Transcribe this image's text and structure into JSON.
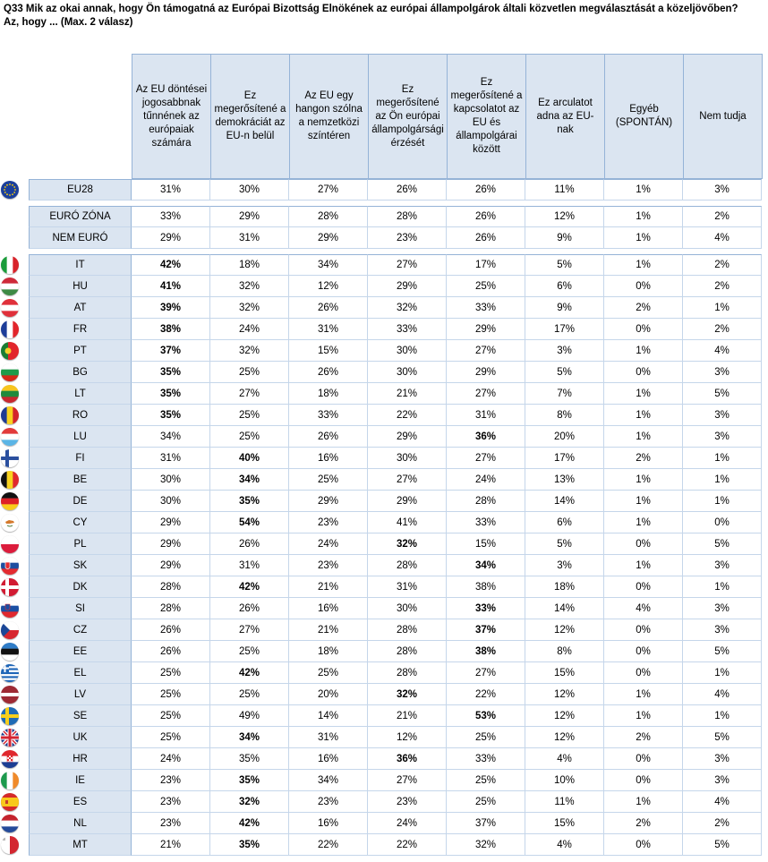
{
  "question": {
    "line1": "Q33 Mik az okai annak, hogy Ön támogatná az Európai Bizottság Elnökének az európai állampolgárok általi közvetlen megválasztását a közeljövőben?",
    "line2": "Az, hogy ... (Max. 2 válasz)"
  },
  "columns": [
    "Az EU döntései jogosabbnak tűnnének az európaiak számára",
    "Ez megerősítené a demokráciát az EU-n belül",
    "Az EU egy hangon szólna a nemzetközi színtéren",
    "Ez megerősítené az Ön európai állampolgársági érzését",
    "Ez megerősítené a kapcsolatot az EU és állampolgárai között",
    "Ez arculatot adna az EU-nak",
    "Egyéb (SPONTÁN)",
    "Nem tudja"
  ],
  "rows": [
    {
      "label": "EU28",
      "flag": "eu",
      "values": [
        "31%",
        "30%",
        "27%",
        "26%",
        "26%",
        "11%",
        "1%",
        "3%"
      ],
      "bold": []
    },
    {
      "label": "EURÓ ZÓNA",
      "flag": "",
      "values": [
        "33%",
        "29%",
        "28%",
        "28%",
        "26%",
        "12%",
        "1%",
        "2%"
      ],
      "bold": []
    },
    {
      "label": "NEM EURÓ",
      "flag": "",
      "values": [
        "29%",
        "31%",
        "29%",
        "23%",
        "26%",
        "9%",
        "1%",
        "4%"
      ],
      "bold": []
    },
    {
      "label": "IT",
      "flag": "it",
      "values": [
        "42%",
        "18%",
        "34%",
        "27%",
        "17%",
        "5%",
        "1%",
        "2%"
      ],
      "bold": [
        0
      ]
    },
    {
      "label": "HU",
      "flag": "hu",
      "values": [
        "41%",
        "32%",
        "12%",
        "29%",
        "25%",
        "6%",
        "0%",
        "2%"
      ],
      "bold": [
        0
      ]
    },
    {
      "label": "AT",
      "flag": "at",
      "values": [
        "39%",
        "32%",
        "26%",
        "32%",
        "33%",
        "9%",
        "2%",
        "1%"
      ],
      "bold": [
        0
      ]
    },
    {
      "label": "FR",
      "flag": "fr",
      "values": [
        "38%",
        "24%",
        "31%",
        "33%",
        "29%",
        "17%",
        "0%",
        "2%"
      ],
      "bold": [
        0
      ]
    },
    {
      "label": "PT",
      "flag": "pt",
      "values": [
        "37%",
        "32%",
        "15%",
        "30%",
        "27%",
        "3%",
        "1%",
        "4%"
      ],
      "bold": [
        0
      ]
    },
    {
      "label": "BG",
      "flag": "bg",
      "values": [
        "35%",
        "25%",
        "26%",
        "30%",
        "29%",
        "5%",
        "0%",
        "3%"
      ],
      "bold": [
        0
      ]
    },
    {
      "label": "LT",
      "flag": "lt",
      "values": [
        "35%",
        "27%",
        "18%",
        "21%",
        "27%",
        "7%",
        "1%",
        "5%"
      ],
      "bold": [
        0
      ]
    },
    {
      "label": "RO",
      "flag": "ro",
      "values": [
        "35%",
        "25%",
        "33%",
        "22%",
        "31%",
        "8%",
        "1%",
        "3%"
      ],
      "bold": [
        0
      ]
    },
    {
      "label": "LU",
      "flag": "lu",
      "values": [
        "34%",
        "25%",
        "26%",
        "29%",
        "36%",
        "20%",
        "1%",
        "3%"
      ],
      "bold": [
        4
      ]
    },
    {
      "label": "FI",
      "flag": "fi",
      "values": [
        "31%",
        "40%",
        "16%",
        "30%",
        "27%",
        "17%",
        "2%",
        "1%"
      ],
      "bold": [
        1
      ]
    },
    {
      "label": "BE",
      "flag": "be",
      "values": [
        "30%",
        "34%",
        "25%",
        "27%",
        "24%",
        "13%",
        "1%",
        "1%"
      ],
      "bold": [
        1
      ]
    },
    {
      "label": "DE",
      "flag": "de",
      "values": [
        "30%",
        "35%",
        "29%",
        "29%",
        "28%",
        "14%",
        "1%",
        "1%"
      ],
      "bold": [
        1
      ]
    },
    {
      "label": "CY",
      "flag": "cy",
      "values": [
        "29%",
        "54%",
        "23%",
        "41%",
        "33%",
        "6%",
        "1%",
        "0%"
      ],
      "bold": [
        1
      ]
    },
    {
      "label": "PL",
      "flag": "pl",
      "values": [
        "29%",
        "26%",
        "24%",
        "32%",
        "15%",
        "5%",
        "0%",
        "5%"
      ],
      "bold": [
        3
      ]
    },
    {
      "label": "SK",
      "flag": "sk",
      "values": [
        "29%",
        "31%",
        "23%",
        "28%",
        "34%",
        "3%",
        "1%",
        "3%"
      ],
      "bold": [
        4
      ]
    },
    {
      "label": "DK",
      "flag": "dk",
      "values": [
        "28%",
        "42%",
        "21%",
        "31%",
        "38%",
        "18%",
        "0%",
        "1%"
      ],
      "bold": [
        1
      ]
    },
    {
      "label": "SI",
      "flag": "si",
      "values": [
        "28%",
        "26%",
        "16%",
        "30%",
        "33%",
        "14%",
        "4%",
        "3%"
      ],
      "bold": [
        4
      ]
    },
    {
      "label": "CZ",
      "flag": "cz",
      "values": [
        "26%",
        "27%",
        "21%",
        "28%",
        "37%",
        "12%",
        "0%",
        "3%"
      ],
      "bold": [
        4
      ]
    },
    {
      "label": "EE",
      "flag": "ee",
      "values": [
        "26%",
        "25%",
        "18%",
        "28%",
        "38%",
        "8%",
        "0%",
        "5%"
      ],
      "bold": [
        4
      ]
    },
    {
      "label": "EL",
      "flag": "el",
      "values": [
        "25%",
        "42%",
        "25%",
        "28%",
        "27%",
        "15%",
        "0%",
        "1%"
      ],
      "bold": [
        1
      ]
    },
    {
      "label": "LV",
      "flag": "lv",
      "values": [
        "25%",
        "25%",
        "20%",
        "32%",
        "22%",
        "12%",
        "1%",
        "4%"
      ],
      "bold": [
        3
      ]
    },
    {
      "label": "SE",
      "flag": "se",
      "values": [
        "25%",
        "49%",
        "14%",
        "21%",
        "53%",
        "12%",
        "1%",
        "1%"
      ],
      "bold": [
        4
      ]
    },
    {
      "label": "UK",
      "flag": "uk",
      "values": [
        "25%",
        "34%",
        "31%",
        "12%",
        "25%",
        "12%",
        "2%",
        "5%"
      ],
      "bold": [
        1
      ]
    },
    {
      "label": "HR",
      "flag": "hr",
      "values": [
        "24%",
        "35%",
        "16%",
        "36%",
        "33%",
        "4%",
        "0%",
        "3%"
      ],
      "bold": [
        3
      ]
    },
    {
      "label": "IE",
      "flag": "ie",
      "values": [
        "23%",
        "35%",
        "34%",
        "27%",
        "25%",
        "10%",
        "0%",
        "3%"
      ],
      "bold": [
        1
      ]
    },
    {
      "label": "ES",
      "flag": "es",
      "values": [
        "23%",
        "32%",
        "23%",
        "23%",
        "25%",
        "11%",
        "1%",
        "4%"
      ],
      "bold": [
        1
      ]
    },
    {
      "label": "NL",
      "flag": "nl",
      "values": [
        "23%",
        "42%",
        "16%",
        "24%",
        "37%",
        "15%",
        "2%",
        "2%"
      ],
      "bold": [
        1
      ]
    },
    {
      "label": "MT",
      "flag": "mt",
      "values": [
        "21%",
        "35%",
        "22%",
        "22%",
        "32%",
        "4%",
        "0%",
        "5%"
      ],
      "bold": [
        1
      ]
    }
  ]
}
